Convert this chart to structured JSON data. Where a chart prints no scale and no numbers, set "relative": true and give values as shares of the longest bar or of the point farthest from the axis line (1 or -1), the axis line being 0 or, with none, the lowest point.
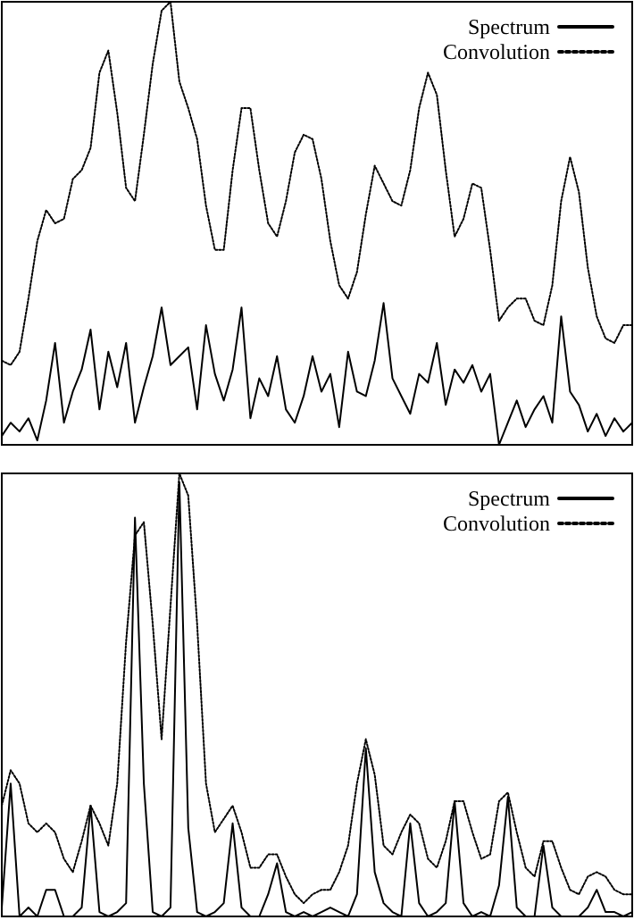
{
  "chart_data": [
    {
      "type": "line",
      "relative": true,
      "legend": "top right",
      "categories": [
        null,
        null,
        null,
        null,
        null,
        null,
        null,
        null,
        null,
        null,
        null,
        null,
        null,
        null,
        null,
        null,
        null,
        null,
        null,
        null,
        null,
        null,
        null,
        null,
        null,
        null,
        null,
        null,
        null,
        null,
        null,
        null,
        null,
        null,
        null,
        null,
        null,
        null,
        null,
        null,
        null,
        null,
        null,
        null,
        null,
        null,
        null,
        null,
        null,
        null,
        null,
        null,
        null,
        null,
        null,
        null,
        null,
        null,
        null,
        null,
        null,
        null,
        null,
        null,
        null,
        null,
        null,
        null,
        null,
        null,
        null,
        null
      ],
      "series": [
        {
          "name": "Spectrum",
          "color": "#000000",
          "line_style": "solid",
          "values": [
            0.02,
            0.05,
            0.03,
            0.06,
            0.01,
            0.1,
            0.23,
            0.05,
            0.12,
            0.17,
            0.26,
            0.08,
            0.21,
            0.13,
            0.23,
            0.05,
            0.13,
            0.2,
            0.31,
            0.18,
            0.2,
            0.22,
            0.08,
            0.27,
            0.16,
            0.1,
            0.17,
            0.31,
            0.06,
            0.15,
            0.11,
            0.2,
            0.08,
            0.05,
            0.11,
            0.2,
            0.12,
            0.16,
            0.04,
            0.21,
            0.12,
            0.11,
            0.19,
            0.32,
            0.15,
            0.11,
            0.07,
            0.16,
            0.14,
            0.23,
            0.09,
            0.17,
            0.14,
            0.18,
            0.12,
            0.16,
            0,
            0.05,
            0.1,
            0.04,
            0.08,
            0.11,
            0.05,
            0.29,
            0.12,
            0.09,
            0.03,
            0.07,
            0.02,
            0.06,
            0.03,
            0.05
          ]
        },
        {
          "name": "Convolution",
          "color": "#000000",
          "line_style": "dotted",
          "values": [
            0.19,
            0.18,
            0.21,
            0.33,
            0.46,
            0.53,
            0.5,
            0.51,
            0.6,
            0.62,
            0.67,
            0.84,
            0.89,
            0.75,
            0.58,
            0.55,
            0.7,
            0.86,
            0.98,
            1.0,
            0.82,
            0.76,
            0.69,
            0.54,
            0.44,
            0.44,
            0.62,
            0.76,
            0.76,
            0.62,
            0.5,
            0.47,
            0.55,
            0.66,
            0.7,
            0.69,
            0.6,
            0.46,
            0.36,
            0.33,
            0.39,
            0.52,
            0.63,
            0.59,
            0.55,
            0.54,
            0.62,
            0.76,
            0.84,
            0.79,
            0.62,
            0.47,
            0.51,
            0.59,
            0.58,
            0.44,
            0.28,
            0.31,
            0.33,
            0.33,
            0.28,
            0.27,
            0.36,
            0.55,
            0.65,
            0.57,
            0.4,
            0.29,
            0.24,
            0.23,
            0.27,
            0.27
          ]
        }
      ]
    },
    {
      "type": "line",
      "relative": true,
      "legend": "top right",
      "categories": [
        null,
        null,
        null,
        null,
        null,
        null,
        null,
        null,
        null,
        null,
        null,
        null,
        null,
        null,
        null,
        null,
        null,
        null,
        null,
        null,
        null,
        null,
        null,
        null,
        null,
        null,
        null,
        null,
        null,
        null,
        null,
        null,
        null,
        null,
        null,
        null,
        null,
        null,
        null,
        null,
        null,
        null,
        null,
        null,
        null,
        null,
        null,
        null,
        null,
        null,
        null,
        null,
        null,
        null,
        null,
        null,
        null,
        null,
        null,
        null,
        null,
        null,
        null,
        null,
        null,
        null,
        null,
        null,
        null,
        null,
        null,
        null
      ],
      "series": [
        {
          "name": "Spectrum",
          "color": "#000000",
          "line_style": "solid",
          "values": [
            0.02,
            0.3,
            0,
            0.02,
            0,
            0.06,
            0.06,
            0,
            0,
            0.02,
            0.25,
            0.01,
            0,
            0.01,
            0.03,
            0.9,
            0.3,
            0.01,
            0,
            0.02,
            0.98,
            0.2,
            0.01,
            0,
            0.01,
            0.03,
            0.21,
            0.02,
            0,
            0,
            0.05,
            0.12,
            0.01,
            0,
            0.01,
            0,
            0.01,
            0.02,
            0.01,
            0,
            0.05,
            0.38,
            0.1,
            0.03,
            0.01,
            0,
            0.21,
            0.03,
            0,
            0.01,
            0.03,
            0.26,
            0.03,
            0,
            0.01,
            0,
            0.07,
            0.27,
            0.02,
            0,
            0,
            0.16,
            0.02,
            0,
            0,
            0,
            0.02,
            0.06,
            0.01,
            0.01,
            0,
            0.01
          ]
        },
        {
          "name": "Convolution",
          "color": "#000000",
          "line_style": "dotted",
          "values": [
            0.25,
            0.33,
            0.3,
            0.21,
            0.19,
            0.21,
            0.19,
            0.13,
            0.1,
            0.17,
            0.25,
            0.21,
            0.16,
            0.3,
            0.62,
            0.86,
            0.89,
            0.66,
            0.4,
            0.7,
            1.0,
            0.95,
            0.66,
            0.3,
            0.19,
            0.22,
            0.25,
            0.19,
            0.11,
            0.11,
            0.14,
            0.14,
            0.09,
            0.05,
            0.03,
            0.05,
            0.06,
            0.06,
            0.1,
            0.16,
            0.3,
            0.4,
            0.32,
            0.16,
            0.14,
            0.19,
            0.23,
            0.21,
            0.13,
            0.11,
            0.17,
            0.26,
            0.26,
            0.19,
            0.13,
            0.14,
            0.26,
            0.28,
            0.19,
            0.11,
            0.09,
            0.17,
            0.17,
            0.11,
            0.06,
            0.05,
            0.09,
            0.1,
            0.09,
            0.06,
            0.05,
            0.05
          ]
        }
      ]
    }
  ]
}
